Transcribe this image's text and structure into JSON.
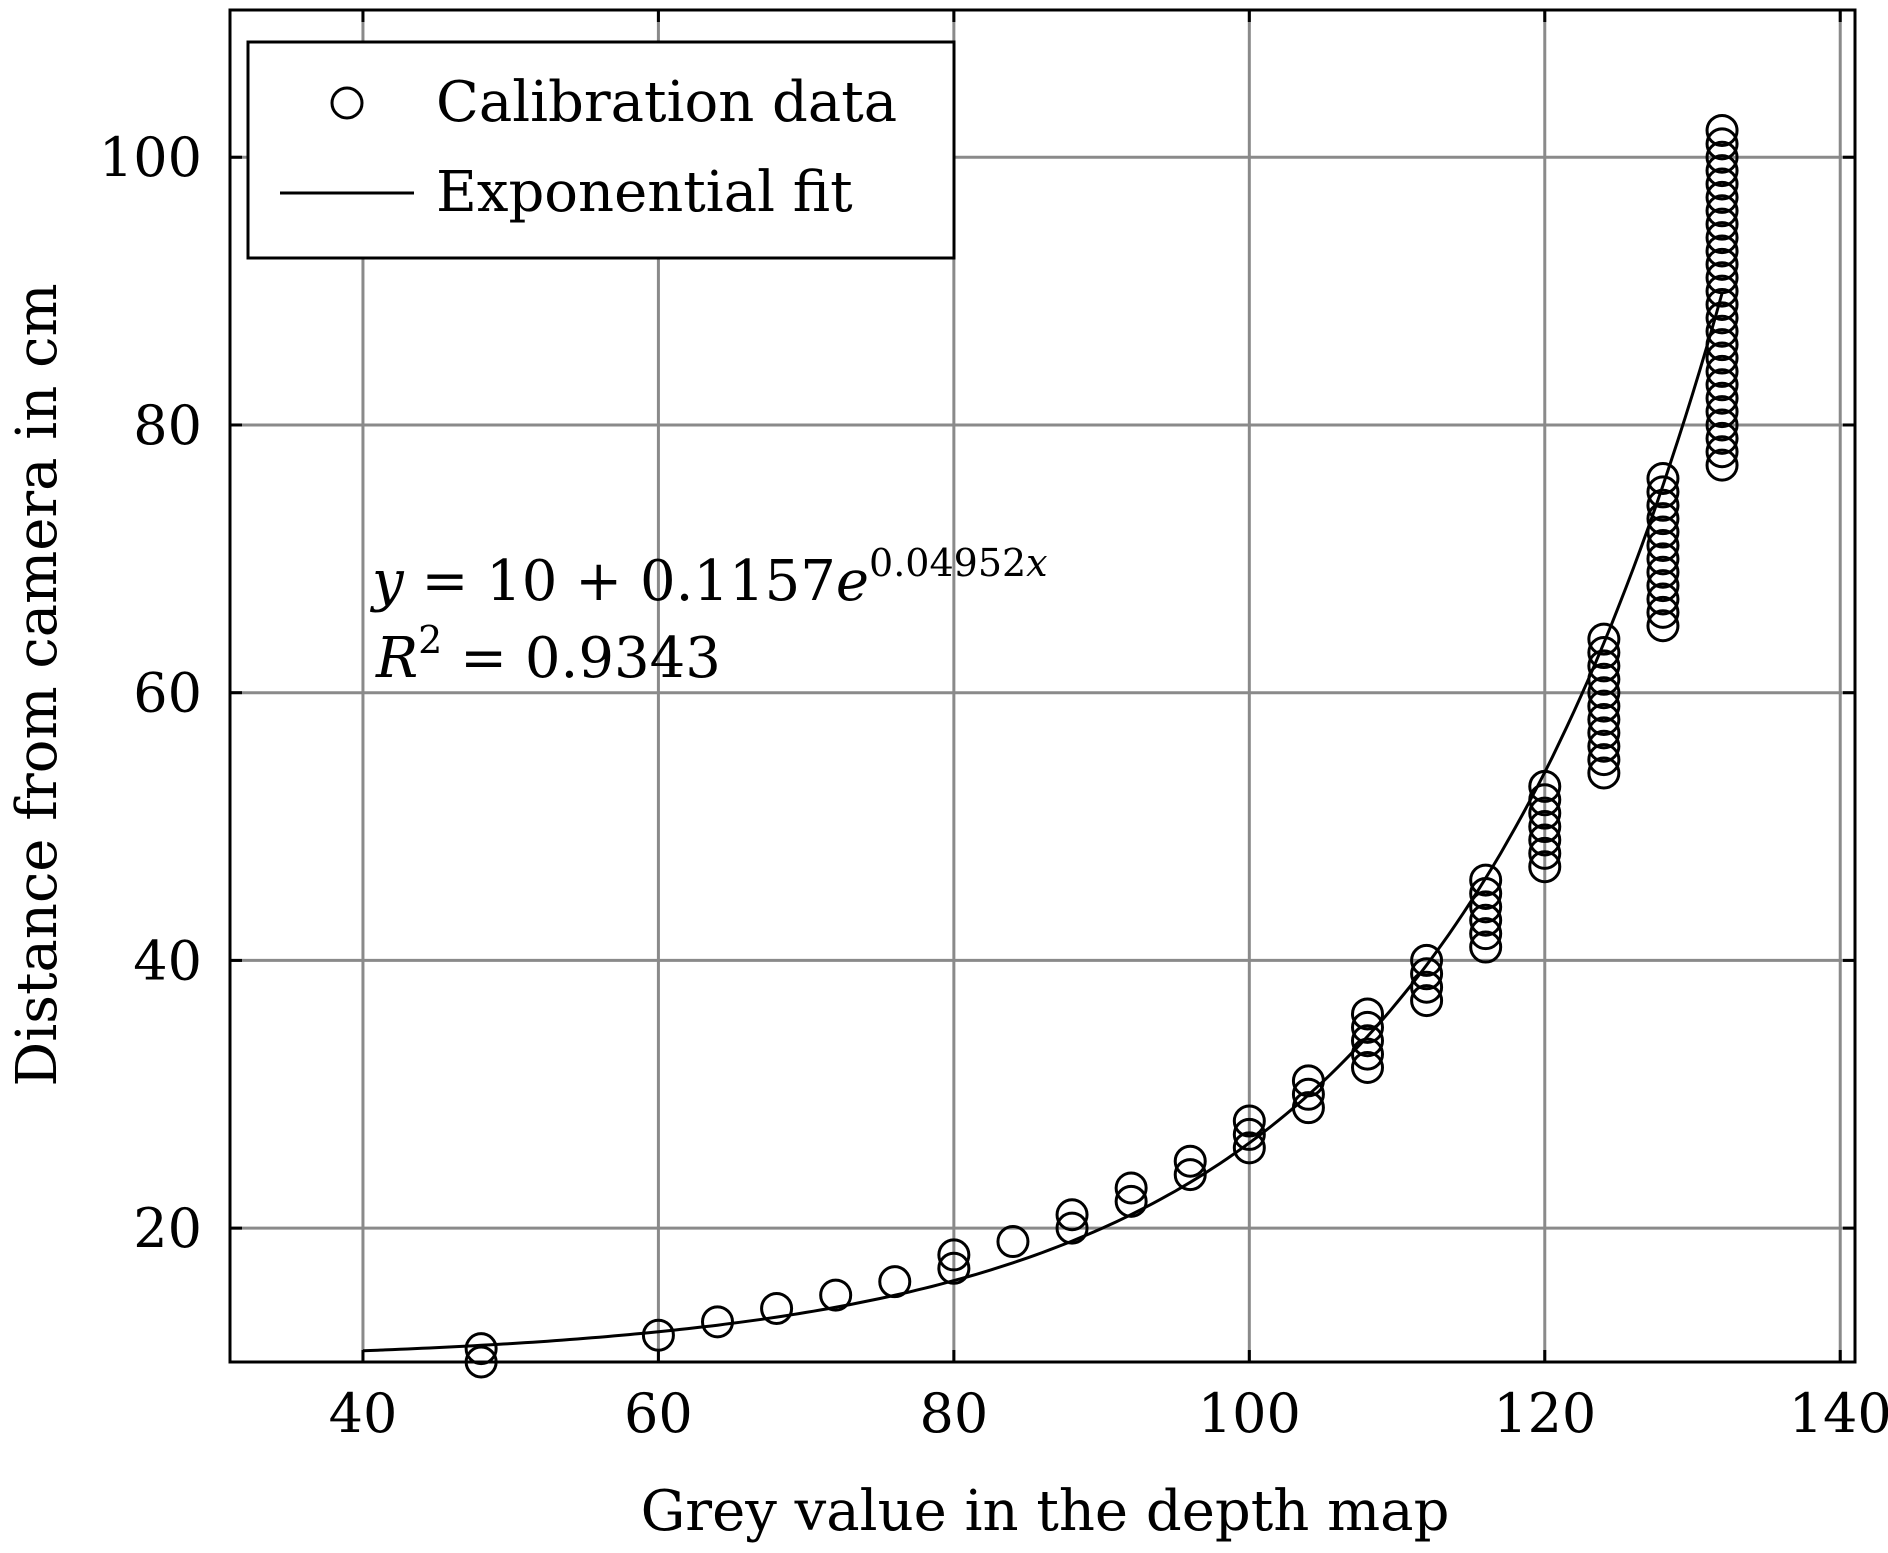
{
  "chart_data": {
    "type": "scatter",
    "xlabel": "Grey value in the depth map",
    "ylabel": "Distance from camera in cm",
    "xlim": [
      31,
      141
    ],
    "ylim": [
      10,
      111
    ],
    "xticks": [
      40,
      60,
      80,
      100,
      120,
      140
    ],
    "yticks": [
      20,
      40,
      60,
      80,
      100
    ],
    "grid": true,
    "legend": {
      "placement": "top-left",
      "entries": [
        {
          "label": "Calibration data",
          "marker": "circle"
        },
        {
          "label": "Exponential fit",
          "marker": "line"
        }
      ]
    },
    "annotation": {
      "equation": {
        "y": "y",
        "eq": " = 10 + 0.1157",
        "e": "e",
        "exp": "0.04952",
        "expvar": "x"
      },
      "r2": {
        "r": "R",
        "sup": "2",
        "eq": " = 0.9343"
      }
    },
    "series": [
      {
        "name": "Calibration data",
        "kind": "scatter",
        "x": [
          48,
          48,
          60,
          64,
          68,
          72,
          76,
          80,
          80,
          84,
          88,
          88,
          92,
          92,
          96,
          96,
          100,
          100,
          100,
          104,
          104,
          104,
          108,
          108,
          108,
          108,
          108,
          112,
          112,
          112,
          112,
          116,
          116,
          116,
          116,
          116,
          116,
          120,
          120,
          120,
          120,
          120,
          120,
          120,
          124,
          124,
          124,
          124,
          124,
          124,
          124,
          124,
          124,
          124,
          124,
          128,
          128,
          128,
          128,
          128,
          128,
          128,
          128,
          128,
          128,
          128,
          128,
          132,
          132,
          132,
          132,
          132,
          132,
          132,
          132,
          132,
          132,
          132,
          132,
          132,
          132,
          132,
          132,
          132,
          132,
          132,
          132,
          132,
          132,
          132,
          132,
          132,
          132
        ],
        "y": [
          11,
          10,
          12,
          13,
          14,
          15,
          16,
          17,
          18,
          19,
          20,
          21,
          22,
          23,
          24,
          25,
          26,
          27,
          28,
          29,
          30,
          31,
          32,
          33,
          34,
          35,
          36,
          37,
          38,
          39,
          40,
          41,
          42,
          43,
          44,
          45,
          46,
          47,
          48,
          49,
          50,
          51,
          52,
          53,
          54,
          55,
          56,
          57,
          58,
          59,
          60,
          61,
          62,
          63,
          64,
          65,
          66,
          67,
          68,
          69,
          70,
          71,
          72,
          73,
          74,
          75,
          76,
          77,
          78,
          79,
          80,
          81,
          82,
          83,
          84,
          85,
          86,
          87,
          88,
          89,
          90,
          91,
          92,
          93,
          94,
          95,
          96,
          97,
          98,
          99,
          100,
          101,
          102
        ]
      },
      {
        "name": "Exponential fit",
        "kind": "line",
        "model": {
          "a": 10,
          "b": 0.1157,
          "c": 0.04952
        },
        "x_range": [
          40,
          132
        ]
      }
    ]
  }
}
